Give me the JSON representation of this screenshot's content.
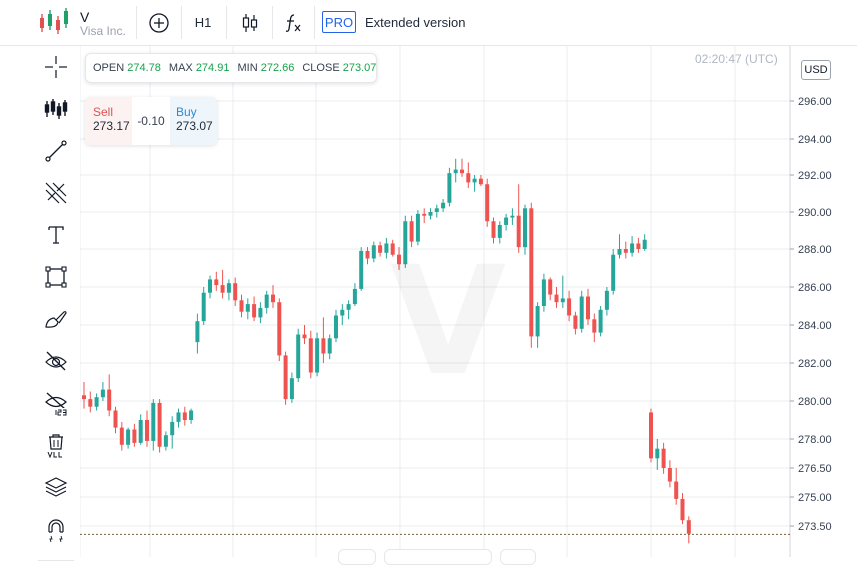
{
  "header": {
    "symbol": "V",
    "company": "Visa Inc.",
    "timeframe": "H1",
    "pro_badge": "PRO",
    "extended_label": "Extended version"
  },
  "icons": {
    "logo": "candlestick-logo-icon",
    "add": "plus-circle-icon",
    "candles": "candlestick-icon",
    "indicators": "function-icon",
    "sidebar": [
      "crosshair-icon",
      "bars-icon",
      "trend-line-icon",
      "fibonacci-icon",
      "text-icon",
      "rectangle-icon",
      "brush-icon",
      "hide-drawings-icon",
      "hide-labels-icon",
      "delete-all-icon",
      "layers-icon",
      "magnet-icon"
    ]
  },
  "ohlc": {
    "open_label": "OPEN",
    "open": "274.78",
    "max_label": "MAX",
    "max": "274.91",
    "min_label": "MIN",
    "min": "272.66",
    "close_label": "CLOSE",
    "close": "273.07"
  },
  "trade": {
    "sell_label": "Sell",
    "sell_price": "273.17",
    "spread": "-0.10",
    "buy_label": "Buy",
    "buy_price": "273.07"
  },
  "time": "02:20:47 (UTC)",
  "currency": "USD",
  "watermark": "V",
  "colors": {
    "up": "#26a69a",
    "down": "#ef5350",
    "grid": "#e9ecef",
    "accent": "#2563eb"
  },
  "chart_data": {
    "type": "candlestick",
    "y_ticks": [
      "296.00",
      "294.00",
      "292.00",
      "290.00",
      "288.00",
      "286.00",
      "284.00",
      "282.00",
      "280.00",
      "278.00",
      "276.50",
      "275.00",
      "273.50"
    ],
    "last_price": 273.07,
    "candles": [
      [
        280.3,
        281.0,
        279.6,
        280.1
      ],
      [
        280.1,
        280.5,
        279.4,
        279.7
      ],
      [
        279.7,
        280.4,
        279.5,
        280.2
      ],
      [
        280.2,
        281.0,
        280.0,
        280.6
      ],
      [
        280.6,
        281.4,
        279.2,
        279.5
      ],
      [
        279.5,
        279.7,
        278.3,
        278.6
      ],
      [
        278.6,
        278.9,
        277.4,
        277.7
      ],
      [
        277.7,
        278.6,
        277.5,
        278.5
      ],
      [
        278.5,
        278.8,
        277.6,
        277.8
      ],
      [
        277.8,
        279.3,
        277.7,
        279.0
      ],
      [
        279.0,
        279.5,
        277.6,
        277.9
      ],
      [
        277.9,
        280.1,
        277.4,
        279.9
      ],
      [
        279.9,
        280.1,
        277.3,
        277.6
      ],
      [
        277.6,
        278.4,
        277.4,
        278.2
      ],
      [
        278.2,
        279.2,
        277.5,
        278.9
      ],
      [
        278.9,
        279.6,
        278.6,
        279.4
      ],
      [
        279.4,
        279.7,
        278.7,
        279.0
      ],
      [
        279.0,
        279.6,
        278.8,
        279.5
      ],
      [
        283.1,
        284.6,
        282.5,
        284.2
      ],
      [
        284.2,
        286.0,
        284.0,
        285.7
      ],
      [
        285.7,
        286.6,
        285.4,
        286.4
      ],
      [
        286.4,
        286.8,
        285.8,
        286.1
      ],
      [
        286.1,
        286.9,
        285.4,
        285.7
      ],
      [
        285.7,
        286.4,
        285.3,
        286.2
      ],
      [
        286.2,
        286.5,
        285.0,
        285.3
      ],
      [
        285.3,
        285.6,
        284.4,
        284.7
      ],
      [
        284.7,
        285.4,
        284.3,
        285.1
      ],
      [
        285.1,
        285.5,
        284.2,
        284.4
      ],
      [
        284.4,
        285.2,
        284.1,
        284.9
      ],
      [
        284.9,
        285.8,
        284.6,
        285.6
      ],
      [
        285.6,
        286.1,
        284.9,
        285.2
      ],
      [
        285.2,
        285.4,
        282.1,
        282.4
      ],
      [
        282.4,
        282.6,
        279.8,
        280.1
      ],
      [
        280.1,
        281.5,
        279.9,
        281.2
      ],
      [
        281.2,
        283.8,
        281.0,
        283.5
      ],
      [
        283.5,
        284.0,
        283.0,
        283.3
      ],
      [
        283.3,
        283.7,
        281.2,
        281.5
      ],
      [
        281.5,
        283.6,
        281.3,
        283.3
      ],
      [
        283.3,
        284.4,
        282.0,
        282.5
      ],
      [
        282.5,
        283.5,
        282.2,
        283.3
      ],
      [
        283.3,
        284.8,
        283.1,
        284.5
      ],
      [
        284.5,
        285.1,
        284.0,
        284.8
      ],
      [
        284.8,
        285.3,
        284.3,
        285.1
      ],
      [
        285.1,
        286.2,
        285.0,
        285.9
      ],
      [
        285.9,
        288.1,
        285.8,
        287.9
      ],
      [
        287.9,
        288.1,
        287.2,
        287.5
      ],
      [
        287.5,
        288.4,
        287.3,
        288.2
      ],
      [
        288.2,
        288.4,
        287.6,
        287.8
      ],
      [
        287.8,
        288.6,
        287.5,
        288.3
      ],
      [
        288.3,
        288.5,
        287.6,
        287.7
      ],
      [
        287.7,
        288.1,
        286.9,
        287.2
      ],
      [
        287.2,
        289.8,
        287.0,
        289.5
      ],
      [
        289.5,
        289.8,
        288.1,
        288.4
      ],
      [
        288.4,
        290.1,
        288.2,
        289.9
      ],
      [
        289.9,
        290.2,
        289.4,
        289.8
      ],
      [
        289.8,
        290.2,
        289.6,
        290.0
      ],
      [
        290.0,
        290.4,
        289.7,
        290.2
      ],
      [
        290.2,
        290.7,
        290.0,
        290.5
      ],
      [
        290.5,
        292.4,
        290.3,
        292.1
      ],
      [
        292.1,
        292.9,
        291.6,
        292.3
      ],
      [
        292.3,
        292.9,
        291.9,
        292.1
      ],
      [
        292.1,
        292.7,
        291.3,
        291.6
      ],
      [
        291.6,
        292.0,
        291.1,
        291.8
      ],
      [
        291.8,
        292.0,
        291.4,
        291.5
      ],
      [
        291.5,
        291.8,
        289.2,
        289.5
      ],
      [
        289.5,
        289.7,
        288.3,
        288.6
      ],
      [
        288.6,
        289.5,
        288.3,
        289.3
      ],
      [
        289.3,
        289.9,
        289.0,
        289.7
      ],
      [
        289.7,
        290.2,
        289.3,
        289.8
      ],
      [
        289.8,
        291.5,
        287.8,
        288.1
      ],
      [
        288.1,
        290.4,
        287.7,
        290.2
      ],
      [
        290.2,
        290.5,
        282.8,
        283.4
      ],
      [
        283.4,
        285.2,
        282.8,
        285.0
      ],
      [
        285.0,
        286.7,
        284.7,
        286.4
      ],
      [
        286.4,
        286.5,
        285.3,
        285.6
      ],
      [
        285.6,
        286.0,
        284.9,
        285.2
      ],
      [
        285.2,
        286.6,
        284.9,
        285.4
      ],
      [
        285.4,
        285.8,
        284.2,
        284.5
      ],
      [
        284.5,
        284.7,
        283.5,
        283.8
      ],
      [
        283.8,
        285.8,
        283.6,
        285.5
      ],
      [
        285.5,
        285.9,
        284.0,
        284.3
      ],
      [
        284.3,
        284.6,
        283.1,
        283.6
      ],
      [
        283.6,
        285.0,
        283.4,
        284.8
      ],
      [
        284.8,
        286.0,
        284.5,
        285.8
      ],
      [
        285.8,
        288.0,
        285.6,
        287.7
      ],
      [
        287.7,
        288.8,
        287.5,
        288.0
      ],
      [
        288.0,
        288.4,
        287.5,
        287.8
      ],
      [
        287.8,
        288.7,
        287.6,
        288.3
      ],
      [
        288.3,
        288.6,
        287.8,
        288.0
      ],
      [
        288.0,
        288.8,
        287.9,
        288.5
      ],
      [
        279.4,
        279.6,
        276.8,
        277.0
      ],
      [
        277.0,
        278.0,
        276.4,
        277.5
      ],
      [
        277.5,
        277.8,
        276.2,
        276.5
      ],
      [
        276.5,
        276.9,
        275.5,
        275.8
      ],
      [
        275.8,
        276.5,
        274.6,
        274.9
      ],
      [
        274.9,
        275.2,
        273.6,
        273.8
      ],
      [
        273.8,
        274.0,
        272.6,
        273.1
      ]
    ]
  }
}
